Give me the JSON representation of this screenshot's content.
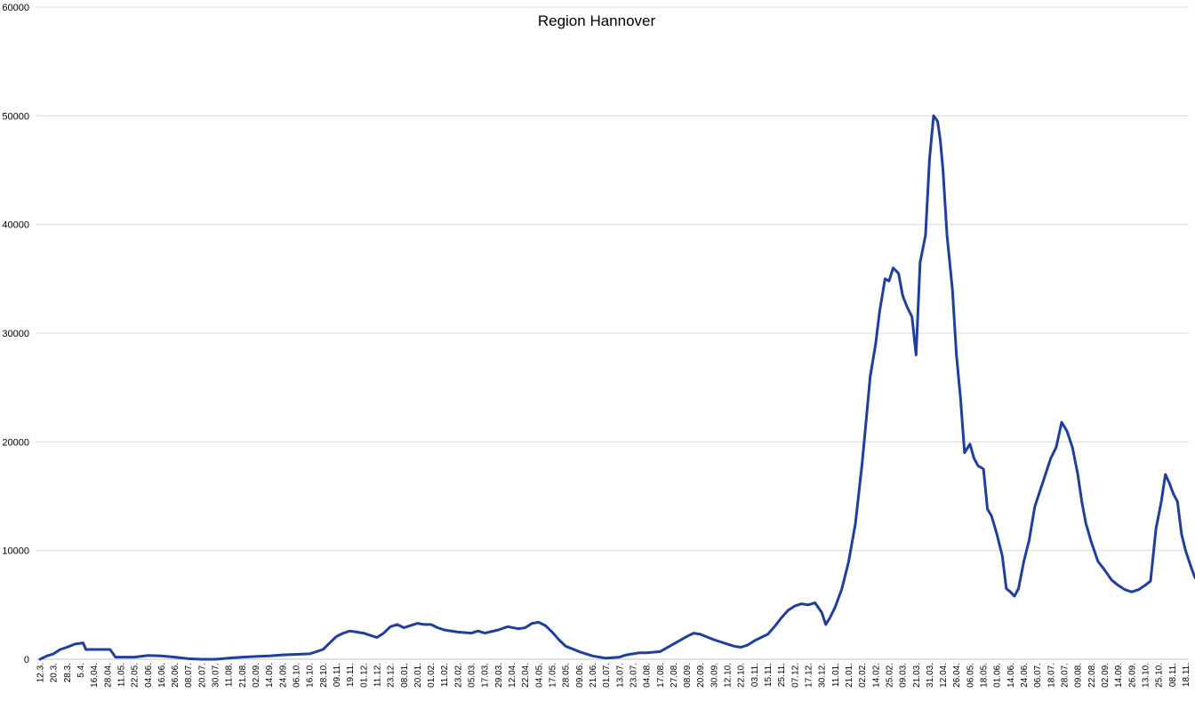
{
  "chart_data": {
    "type": "line",
    "title": "Region Hannover",
    "xlabel": "",
    "ylabel": "",
    "ylim": [
      0,
      60000
    ],
    "yticks": [
      0,
      10000,
      20000,
      30000,
      40000,
      50000,
      60000
    ],
    "grid": true,
    "legend": "none",
    "series_color": "#1f3f9c",
    "x_tick_labels": [
      "12.3.",
      "20.3.",
      "28.3.",
      "5.4.",
      "16.04.",
      "28.04.",
      "11.05.",
      "22.05.",
      "04.06.",
      "16.06.",
      "26.06.",
      "08.07.",
      "20.07.",
      "30.07.",
      "11.08.",
      "21.08.",
      "02.09.",
      "14.09.",
      "24.09.",
      "06.10.",
      "16.10.",
      "28.10.",
      "09.11.",
      "19.11.",
      "01.12.",
      "11.12.",
      "23.12.",
      "08.01.",
      "20.01.",
      "01.02.",
      "11.02.",
      "23.02.",
      "05.03.",
      "17.03.",
      "29.03.",
      "12.04.",
      "22.04.",
      "04.05.",
      "17.05.",
      "28.05.",
      "09.06.",
      "21.06.",
      "01.07.",
      "13.07.",
      "23.07.",
      "04.08.",
      "17.08.",
      "27.08.",
      "08.09.",
      "20.09.",
      "30.09.",
      "12.10.",
      "22.10.",
      "03.11.",
      "15.11.",
      "25.11.",
      "07.12.",
      "17.12.",
      "30.12.",
      "11.01.",
      "21.01.",
      "02.02.",
      "14.02.",
      "25.02.",
      "09.03.",
      "21.03.",
      "31.03.",
      "12.04.",
      "26.04.",
      "06.05.",
      "18.05.",
      "01.06.",
      "14.06.",
      "24.06.",
      "06.07.",
      "18.07.",
      "28.07.",
      "09.08.",
      "22.08.",
      "02.09.",
      "14.09.",
      "26.09.",
      "13.10.",
      "25.10.",
      "08.11.",
      "18.11."
    ],
    "series": [
      {
        "name": "",
        "points": [
          [
            0,
            0
          ],
          [
            0.5,
            300
          ],
          [
            1,
            500
          ],
          [
            1.5,
            900
          ],
          [
            2,
            1100
          ],
          [
            2.6,
            1400
          ],
          [
            3.2,
            1500
          ],
          [
            3.4,
            900
          ],
          [
            4,
            900
          ],
          [
            4.5,
            900
          ],
          [
            5.2,
            900
          ],
          [
            5.6,
            200
          ],
          [
            6,
            200
          ],
          [
            7,
            200
          ],
          [
            8,
            350
          ],
          [
            9,
            300
          ],
          [
            10,
            200
          ],
          [
            11,
            50
          ],
          [
            12,
            0
          ],
          [
            13,
            0
          ],
          [
            14,
            100
          ],
          [
            15,
            200
          ],
          [
            16,
            250
          ],
          [
            17,
            300
          ],
          [
            18,
            400
          ],
          [
            19,
            450
          ],
          [
            20,
            500
          ],
          [
            21,
            900
          ],
          [
            21.5,
            1500
          ],
          [
            22,
            2100
          ],
          [
            22.5,
            2400
          ],
          [
            23,
            2600
          ],
          [
            23.5,
            2500
          ],
          [
            24,
            2400
          ],
          [
            24.5,
            2200
          ],
          [
            25,
            2000
          ],
          [
            25.5,
            2400
          ],
          [
            26,
            3000
          ],
          [
            26.5,
            3200
          ],
          [
            27,
            2900
          ],
          [
            27.5,
            3100
          ],
          [
            28,
            3300
          ],
          [
            28.5,
            3200
          ],
          [
            29,
            3200
          ],
          [
            29.5,
            2900
          ],
          [
            30,
            2700
          ],
          [
            31,
            2500
          ],
          [
            32,
            2400
          ],
          [
            32.5,
            2600
          ],
          [
            33,
            2400
          ],
          [
            34,
            2700
          ],
          [
            34.7,
            3000
          ],
          [
            35.5,
            2800
          ],
          [
            36,
            2900
          ],
          [
            36.5,
            3300
          ],
          [
            37,
            3400
          ],
          [
            37.5,
            3100
          ],
          [
            38,
            2500
          ],
          [
            38.5,
            1800
          ],
          [
            39,
            1200
          ],
          [
            40,
            700
          ],
          [
            41,
            300
          ],
          [
            42,
            100
          ],
          [
            43,
            200
          ],
          [
            43.5,
            400
          ],
          [
            44,
            500
          ],
          [
            44.5,
            600
          ],
          [
            45,
            600
          ],
          [
            46,
            700
          ],
          [
            47,
            1400
          ],
          [
            48,
            2100
          ],
          [
            48.5,
            2400
          ],
          [
            49,
            2300
          ],
          [
            50,
            1800
          ],
          [
            51,
            1400
          ],
          [
            51.5,
            1200
          ],
          [
            52,
            1100
          ],
          [
            52.5,
            1300
          ],
          [
            53,
            1700
          ],
          [
            53.5,
            2000
          ],
          [
            54,
            2300
          ],
          [
            54.5,
            3000
          ],
          [
            55,
            3800
          ],
          [
            55.5,
            4500
          ],
          [
            56,
            4900
          ],
          [
            56.5,
            5100
          ],
          [
            57,
            5000
          ],
          [
            57.5,
            5200
          ],
          [
            58,
            4300
          ],
          [
            58.3,
            3200
          ],
          [
            58.6,
            3800
          ],
          [
            59,
            4800
          ],
          [
            59.5,
            6500
          ],
          [
            60,
            9000
          ],
          [
            60.5,
            12500
          ],
          [
            61,
            18000
          ],
          [
            61.3,
            22000
          ],
          [
            61.6,
            26000
          ],
          [
            62,
            29000
          ],
          [
            62.3,
            32000
          ],
          [
            62.7,
            35000
          ],
          [
            63,
            34800
          ],
          [
            63.3,
            36000
          ],
          [
            63.7,
            35500
          ],
          [
            64,
            33500
          ],
          [
            64.3,
            32500
          ],
          [
            64.7,
            31500
          ],
          [
            65,
            28000
          ],
          [
            65.3,
            36500
          ],
          [
            65.7,
            39000
          ],
          [
            66,
            46000
          ],
          [
            66.3,
            50000
          ],
          [
            66.6,
            49500
          ],
          [
            66.8,
            47800
          ],
          [
            67,
            45000
          ],
          [
            67.3,
            39000
          ],
          [
            67.7,
            34000
          ],
          [
            68,
            28000
          ],
          [
            68.3,
            24000
          ],
          [
            68.6,
            19000
          ],
          [
            69,
            19800
          ],
          [
            69.3,
            18500
          ],
          [
            69.6,
            17800
          ],
          [
            70,
            17500
          ],
          [
            70.3,
            13800
          ],
          [
            70.6,
            13200
          ],
          [
            71,
            11500
          ],
          [
            71.4,
            9500
          ],
          [
            71.7,
            6500
          ],
          [
            72,
            6200
          ],
          [
            72.3,
            5800
          ],
          [
            72.6,
            6500
          ],
          [
            73,
            9000
          ],
          [
            73.4,
            11000
          ],
          [
            73.8,
            14000
          ],
          [
            74.2,
            15500
          ],
          [
            74.6,
            17000
          ],
          [
            75,
            18500
          ],
          [
            75.4,
            19500
          ],
          [
            75.8,
            21800
          ],
          [
            76.2,
            21000
          ],
          [
            76.6,
            19500
          ],
          [
            77,
            17000
          ],
          [
            77.3,
            14500
          ],
          [
            77.6,
            12500
          ],
          [
            78,
            10800
          ],
          [
            78.5,
            9000
          ],
          [
            79,
            8200
          ],
          [
            79.5,
            7300
          ],
          [
            80,
            6800
          ],
          [
            80.5,
            6400
          ],
          [
            81,
            6200
          ],
          [
            81.5,
            6400
          ],
          [
            82,
            6800
          ],
          [
            82.4,
            7200
          ],
          [
            82.8,
            12000
          ],
          [
            83.2,
            14500
          ],
          [
            83.5,
            17000
          ],
          [
            83.8,
            16200
          ],
          [
            84.1,
            15200
          ],
          [
            84.4,
            14500
          ],
          [
            84.7,
            11500
          ],
          [
            85,
            10000
          ],
          [
            85.4,
            8500
          ],
          [
            85.7,
            7500
          ],
          [
            86,
            7200
          ],
          [
            86.3,
            6500
          ],
          [
            86.6,
            6300
          ]
        ]
      }
    ]
  }
}
